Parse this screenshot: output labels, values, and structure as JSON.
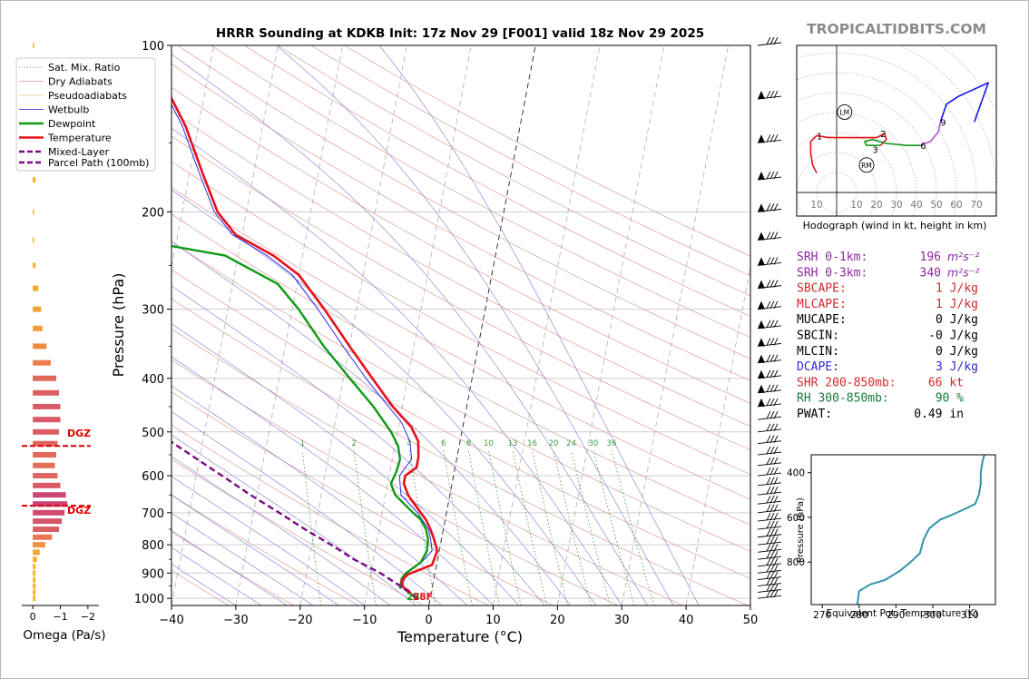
{
  "title": "HRRR Sounding at KDKB Init: 17z Nov 29 [F001] valid 18z Nov 29 2025",
  "watermark": "TROPICALTIDBITS.COM",
  "colors": {
    "temperature": "#e8101a",
    "dewpoint": "#0f9a16",
    "wetbulb": "#1515e6",
    "parcel": "#7a0a86",
    "dry_adiabat": "#e39a9a",
    "moist_adiabat": "#8e8ee0",
    "mix_ratio": "#3a9a3a",
    "srh": "#8e26a3",
    "red": "#d62728",
    "blue": "#2b2bd8",
    "green": "#157a3a",
    "dgz": "#e00000",
    "thetae": "#2f93a8",
    "watermark": "#8a8a8a"
  },
  "legend": [
    {
      "label": "Sat. Mix. Ratio",
      "style": "dotted",
      "color": "#555555"
    },
    {
      "label": "Dry Adiabats",
      "style": "solid",
      "color": "#e39a9a"
    },
    {
      "label": "Pseudoadiabats",
      "style": "solid",
      "color": "#e0c080"
    },
    {
      "label": "Wetbulb",
      "style": "solid",
      "color": "#1515e6"
    },
    {
      "label": "Dewpoint",
      "style": "thick",
      "color": "#0f9a16"
    },
    {
      "label": "Temperature",
      "style": "thick",
      "color": "#e8101a"
    },
    {
      "label": "Mixed-Layer",
      "label2": "Parcel Path (100mb)",
      "style": "dashed",
      "color": "#7a0a86"
    }
  ],
  "surface_label": {
    "td": "28",
    "t": "28F"
  },
  "dgz_label": "DGZ",
  "omega_label": "Omega (Pa/s)",
  "omega_ticks": [
    "0",
    "−1",
    "−2"
  ],
  "hodograph_caption": "Hodograph (wind in kt, height in km)",
  "hodo_ring_labels": [
    "10",
    "10",
    "20",
    "30",
    "40",
    "50",
    "60",
    "70"
  ],
  "hodo_height_labels": [
    "1",
    "2",
    "3",
    "6",
    "9"
  ],
  "hodo_markers": [
    "LM",
    "RM"
  ],
  "indices": [
    {
      "label": "SRH 0-1km:",
      "value": "196",
      "unit": "m²s⁻²",
      "color": "srh"
    },
    {
      "label": "SRH 0-3km:",
      "value": "340",
      "unit": "m²s⁻²",
      "color": "srh"
    },
    {
      "label": "SBCAPE:",
      "value": "1 J/kg",
      "unit": "",
      "color": "red"
    },
    {
      "label": "MLCAPE:",
      "value": "1 J/kg",
      "unit": "",
      "color": "red"
    },
    {
      "label": "MUCAPE:",
      "value": "0 J/kg",
      "unit": "",
      "color": "black"
    },
    {
      "label": "SBCIN:",
      "value": "-0 J/kg",
      "unit": "",
      "color": "black"
    },
    {
      "label": "MLCIN:",
      "value": "0 J/kg",
      "unit": "",
      "color": "black"
    },
    {
      "label": "DCAPE:",
      "value": "3 J/kg",
      "unit": "",
      "color": "blue"
    },
    {
      "label": "SHR 200-850mb:",
      "value": "66 kt",
      "unit": "",
      "color": "red"
    },
    {
      "label": "RH 300-850mb:",
      "value": "90 %",
      "unit": "",
      "color": "green"
    },
    {
      "label": "PWAT:",
      "value": "0.49 in",
      "unit": "",
      "color": "black"
    }
  ],
  "chart_data": [
    {
      "type": "line",
      "subtype": "skew-t",
      "title": "HRRR Sounding at KDKB Init: 17z Nov 29 [F001] valid 18z Nov 29 2025",
      "xlabel": "Temperature (°C)",
      "ylabel": "Pressure (hPa)",
      "xlim": [
        -40,
        50
      ],
      "ylim": [
        1030,
        100
      ],
      "y_scale": "log",
      "x_ticks": [
        -40,
        -30,
        -20,
        -10,
        0,
        10,
        20,
        30,
        40,
        50
      ],
      "y_ticks": [
        100,
        200,
        300,
        400,
        500,
        600,
        700,
        800,
        900,
        1000
      ],
      "mix_ratio_labels": [
        "1",
        "2",
        "4",
        "6",
        "8",
        "10",
        "13",
        "16",
        "20",
        "24",
        "30",
        "36"
      ],
      "series": [
        {
          "name": "Temperature",
          "key": "temperature",
          "points": [
            [
              1000,
              -2.0
            ],
            [
              985,
              -3.0
            ],
            [
              970,
              -3.5
            ],
            [
              955,
              -4.5
            ],
            [
              930,
              -5.0
            ],
            [
              905,
              -4.2
            ],
            [
              870,
              -0.7
            ],
            [
              820,
              -0.3
            ],
            [
              780,
              -1.2
            ],
            [
              750,
              -2.0
            ],
            [
              720,
              -3.0
            ],
            [
              700,
              -4.0
            ],
            [
              670,
              -5.5
            ],
            [
              650,
              -6.5
            ],
            [
              620,
              -7.5
            ],
            [
              600,
              -7.5
            ],
            [
              580,
              -6.0
            ],
            [
              555,
              -6.0
            ],
            [
              520,
              -6.5
            ],
            [
              490,
              -8.0
            ],
            [
              450,
              -11.5
            ],
            [
              400,
              -15.5
            ],
            [
              350,
              -20.0
            ],
            [
              300,
              -25.0
            ],
            [
              260,
              -30.0
            ],
            [
              240,
              -34.5
            ],
            [
              220,
              -41.0
            ],
            [
              200,
              -44.5
            ],
            [
              170,
              -48.0
            ],
            [
              140,
              -52.0
            ],
            [
              120,
              -56.0
            ],
            [
              100,
              -60.0
            ]
          ]
        },
        {
          "name": "Dewpoint",
          "key": "dewpoint",
          "points": [
            [
              960,
              -5.0
            ],
            [
              940,
              -5.0
            ],
            [
              920,
              -5.0
            ],
            [
              900,
              -4.5
            ],
            [
              880,
              -3.5
            ],
            [
              860,
              -2.5
            ],
            [
              820,
              -1.9
            ],
            [
              780,
              -2.1
            ],
            [
              750,
              -2.7
            ],
            [
              720,
              -3.8
            ],
            [
              700,
              -5.2
            ],
            [
              680,
              -6.5
            ],
            [
              650,
              -8.5
            ],
            [
              620,
              -9.5
            ],
            [
              590,
              -9.0
            ],
            [
              560,
              -8.8
            ],
            [
              530,
              -9.5
            ],
            [
              500,
              -11.0
            ],
            [
              450,
              -14.5
            ],
            [
              400,
              -19.0
            ],
            [
              350,
              -24.0
            ],
            [
              300,
              -29.0
            ],
            [
              270,
              -33.0
            ],
            [
              240,
              -42.0
            ],
            [
              225,
              -56.0
            ],
            [
              200,
              -60.0
            ],
            [
              170,
              -66.5
            ],
            [
              140,
              -71.0
            ],
            [
              120,
              -63.0
            ],
            [
              100,
              -67.0
            ]
          ]
        },
        {
          "name": "Wetbulb",
          "key": "wetbulb",
          "points": [
            [
              960,
              -4.8
            ],
            [
              900,
              -4.4
            ],
            [
              860,
              -2.4
            ],
            [
              820,
              -1.1
            ],
            [
              780,
              -1.7
            ],
            [
              750,
              -2.3
            ],
            [
              700,
              -4.5
            ],
            [
              650,
              -7.6
            ],
            [
              600,
              -8.4
            ],
            [
              560,
              -7.0
            ],
            [
              520,
              -7.8
            ],
            [
              480,
              -9.7
            ],
            [
              440,
              -13.0
            ],
            [
              400,
              -16.5
            ],
            [
              350,
              -21.0
            ],
            [
              300,
              -26.0
            ],
            [
              260,
              -31.0
            ],
            [
              240,
              -35.5
            ],
            [
              220,
              -41.5
            ],
            [
              200,
              -45.0
            ],
            [
              170,
              -48.5
            ],
            [
              140,
              -52.5
            ],
            [
              120,
              -56.5
            ],
            [
              100,
              -60.5
            ]
          ]
        },
        {
          "name": "Mixed-Layer Parcel Path (100mb)",
          "key": "parcel",
          "points": [
            [
              1000,
              -2.0
            ],
            [
              950,
              -5.0
            ],
            [
              900,
              -8.5
            ],
            [
              850,
              -13.0
            ],
            [
              800,
              -17.0
            ],
            [
              750,
              -21.5
            ],
            [
              700,
              -26.0
            ],
            [
              650,
              -31.0
            ],
            [
              600,
              -36.0
            ],
            [
              550,
              -41.5
            ],
            [
              500,
              -47.5
            ],
            [
              450,
              -54.0
            ],
            [
              400,
              -61.5
            ],
            [
              350,
              -69.0
            ],
            [
              300,
              -78.0
            ]
          ]
        }
      ]
    },
    {
      "type": "bar",
      "subtype": "omega-profile",
      "title": "",
      "xlabel": "Omega (Pa/s)",
      "xlim": [
        0.4,
        -2.4
      ],
      "x_ticks": [
        0,
        -1,
        -2
      ],
      "levels_hpa": [
        100,
        125,
        150,
        175,
        200,
        225,
        250,
        275,
        300,
        325,
        350,
        375,
        400,
        425,
        450,
        475,
        500,
        525,
        550,
        575,
        600,
        625,
        650,
        675,
        700,
        725,
        750,
        775,
        800,
        825,
        850,
        875,
        900,
        925,
        950,
        975,
        1000
      ],
      "values": [
        -0.05,
        -0.05,
        -0.1,
        -0.1,
        -0.05,
        -0.05,
        -0.1,
        -0.2,
        -0.3,
        -0.35,
        -0.5,
        -0.65,
        -0.85,
        -0.95,
        -1.0,
        -1.0,
        -0.95,
        -0.9,
        -0.85,
        -0.8,
        -0.9,
        -1.0,
        -1.2,
        -1.25,
        -1.15,
        -1.05,
        -0.95,
        -0.7,
        -0.45,
        -0.25,
        -0.15,
        -0.1,
        -0.1,
        -0.1,
        -0.1,
        -0.1,
        -0.1
      ],
      "dgz_bounds_hpa": [
        530,
        680
      ]
    },
    {
      "type": "line",
      "subtype": "hodograph",
      "title": "",
      "caption": "Hodograph (wind in kt, height in km)",
      "xlim": [
        -20,
        80
      ],
      "ylim": [
        -12,
        75
      ],
      "ring_spacing_kt": 10,
      "series": [
        {
          "name": "0-3 km",
          "key": "red",
          "points": [
            [
              -10,
              10
            ],
            [
              -12,
              14
            ],
            [
              -13,
              20
            ],
            [
              -13,
              26
            ],
            [
              -10,
              29
            ],
            [
              -4,
              28
            ],
            [
              8,
              28
            ],
            [
              20,
              28
            ],
            [
              24,
              30
            ],
            [
              25,
              27
            ],
            [
              22,
              24
            ]
          ]
        },
        {
          "name": "3-6 km",
          "key": "green",
          "points": [
            [
              22,
              24
            ],
            [
              15,
              24
            ],
            [
              14,
              26
            ],
            [
              18,
              27
            ],
            [
              25,
              25
            ],
            [
              35,
              24
            ],
            [
              42,
              24
            ]
          ]
        },
        {
          "name": "6-9 km",
          "key": "violet",
          "points": [
            [
              42,
              24
            ],
            [
              47,
              26
            ],
            [
              51,
              31
            ],
            [
              52,
              36
            ]
          ]
        },
        {
          "name": "9+ km",
          "key": "blue",
          "points": [
            [
              52,
              36
            ],
            [
              55,
              45
            ],
            [
              61,
              49
            ],
            [
              76,
              56
            ],
            [
              69,
              36
            ]
          ]
        }
      ],
      "markers": [
        {
          "label": "LM",
          "u": 4,
          "v": 41
        },
        {
          "label": "RM",
          "u": 15,
          "v": 14
        }
      ]
    },
    {
      "type": "line",
      "subtype": "theta-e-profile",
      "title": "",
      "xlabel": "Equivalent Pot. Temperature (K)",
      "ylabel": "Pressure (hPa)",
      "xlim": [
        267,
        317
      ],
      "ylim": [
        990,
        320
      ],
      "x_ticks": [
        270,
        280,
        290,
        300,
        310
      ],
      "y_ticks": [
        400,
        600,
        800
      ],
      "points": [
        [
          990,
          279.5
        ],
        [
          930,
          280
        ],
        [
          900,
          283
        ],
        [
          880,
          287
        ],
        [
          840,
          291
        ],
        [
          800,
          294
        ],
        [
          760,
          296.5
        ],
        [
          700,
          297.5
        ],
        [
          650,
          299
        ],
        [
          610,
          302
        ],
        [
          590,
          305
        ],
        [
          560,
          309
        ],
        [
          540,
          311.5
        ],
        [
          500,
          312.5
        ],
        [
          450,
          313
        ],
        [
          400,
          313
        ],
        [
          350,
          313.5
        ],
        [
          320,
          314
        ]
      ]
    }
  ]
}
